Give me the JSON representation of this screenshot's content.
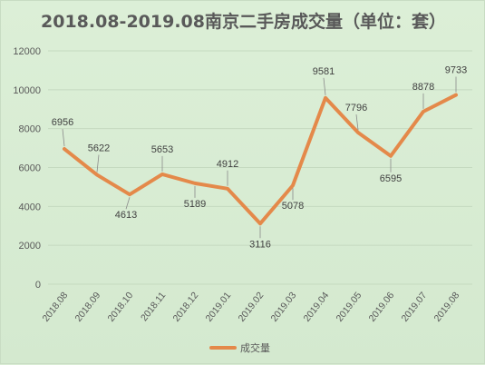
{
  "chart_data": {
    "type": "line",
    "title": "2018.08-2019.08南京二手房成交量（单位：套）",
    "categories": [
      "2018.08",
      "2018.09",
      "2018.10",
      "2018.11",
      "2018.12",
      "2019.01",
      "2019.02",
      "2019.03",
      "2019.04",
      "2019.05",
      "2019.06",
      "2019.07",
      "2019.08"
    ],
    "series": [
      {
        "name": "成交量",
        "values": [
          6956,
          5622,
          4613,
          5653,
          5189,
          4912,
          3116,
          5078,
          9581,
          7796,
          6595,
          8878,
          9733
        ],
        "color": "#e4894a"
      }
    ],
    "ylim": [
      0,
      12000
    ],
    "yticks": [
      "0",
      "2000",
      "4000",
      "6000",
      "8000",
      "10000",
      "12000"
    ],
    "grid": true,
    "legend": "bottom",
    "colors": {
      "background": "#d9ecd4",
      "grid": "#c5dac0",
      "axis_text": "#595959",
      "title": "#595959"
    }
  }
}
